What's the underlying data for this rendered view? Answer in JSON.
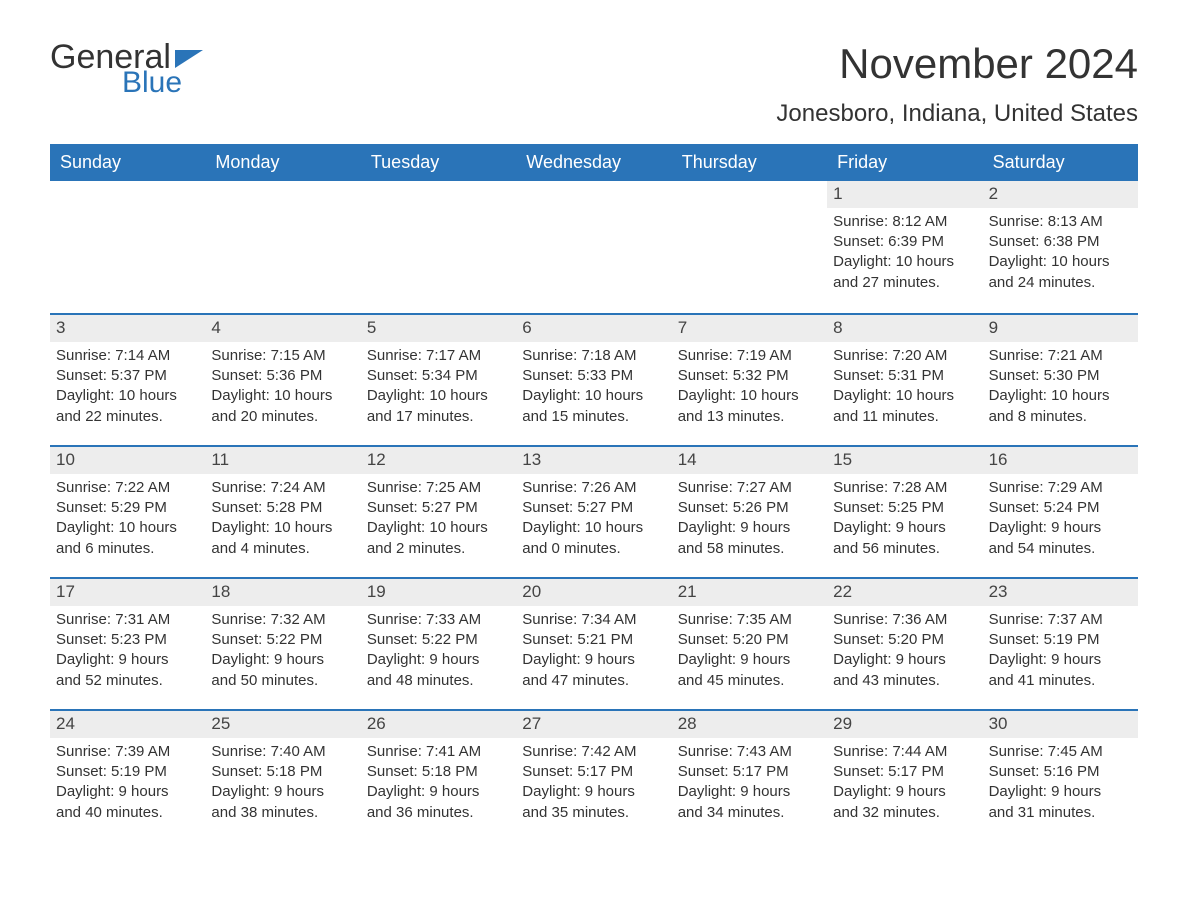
{
  "logo": {
    "text1": "General",
    "text2": "Blue",
    "flag_color": "#2a74b8"
  },
  "title": "November 2024",
  "location": "Jonesboro, Indiana, United States",
  "colors": {
    "header_bg": "#2a74b8",
    "header_text": "#ffffff",
    "daynum_bg": "#ededed",
    "row_border": "#2a74b8",
    "body_text": "#333333",
    "page_bg": "#ffffff"
  },
  "weekdays": [
    "Sunday",
    "Monday",
    "Tuesday",
    "Wednesday",
    "Thursday",
    "Friday",
    "Saturday"
  ],
  "weeks": [
    [
      null,
      null,
      null,
      null,
      null,
      {
        "n": "1",
        "sunrise": "8:12 AM",
        "sunset": "6:39 PM",
        "dl1": "10 hours",
        "dl2": "and 27 minutes."
      },
      {
        "n": "2",
        "sunrise": "8:13 AM",
        "sunset": "6:38 PM",
        "dl1": "10 hours",
        "dl2": "and 24 minutes."
      }
    ],
    [
      {
        "n": "3",
        "sunrise": "7:14 AM",
        "sunset": "5:37 PM",
        "dl1": "10 hours",
        "dl2": "and 22 minutes."
      },
      {
        "n": "4",
        "sunrise": "7:15 AM",
        "sunset": "5:36 PM",
        "dl1": "10 hours",
        "dl2": "and 20 minutes."
      },
      {
        "n": "5",
        "sunrise": "7:17 AM",
        "sunset": "5:34 PM",
        "dl1": "10 hours",
        "dl2": "and 17 minutes."
      },
      {
        "n": "6",
        "sunrise": "7:18 AM",
        "sunset": "5:33 PM",
        "dl1": "10 hours",
        "dl2": "and 15 minutes."
      },
      {
        "n": "7",
        "sunrise": "7:19 AM",
        "sunset": "5:32 PM",
        "dl1": "10 hours",
        "dl2": "and 13 minutes."
      },
      {
        "n": "8",
        "sunrise": "7:20 AM",
        "sunset": "5:31 PM",
        "dl1": "10 hours",
        "dl2": "and 11 minutes."
      },
      {
        "n": "9",
        "sunrise": "7:21 AM",
        "sunset": "5:30 PM",
        "dl1": "10 hours",
        "dl2": "and 8 minutes."
      }
    ],
    [
      {
        "n": "10",
        "sunrise": "7:22 AM",
        "sunset": "5:29 PM",
        "dl1": "10 hours",
        "dl2": "and 6 minutes."
      },
      {
        "n": "11",
        "sunrise": "7:24 AM",
        "sunset": "5:28 PM",
        "dl1": "10 hours",
        "dl2": "and 4 minutes."
      },
      {
        "n": "12",
        "sunrise": "7:25 AM",
        "sunset": "5:27 PM",
        "dl1": "10 hours",
        "dl2": "and 2 minutes."
      },
      {
        "n": "13",
        "sunrise": "7:26 AM",
        "sunset": "5:27 PM",
        "dl1": "10 hours",
        "dl2": "and 0 minutes."
      },
      {
        "n": "14",
        "sunrise": "7:27 AM",
        "sunset": "5:26 PM",
        "dl1": "9 hours",
        "dl2": "and 58 minutes."
      },
      {
        "n": "15",
        "sunrise": "7:28 AM",
        "sunset": "5:25 PM",
        "dl1": "9 hours",
        "dl2": "and 56 minutes."
      },
      {
        "n": "16",
        "sunrise": "7:29 AM",
        "sunset": "5:24 PM",
        "dl1": "9 hours",
        "dl2": "and 54 minutes."
      }
    ],
    [
      {
        "n": "17",
        "sunrise": "7:31 AM",
        "sunset": "5:23 PM",
        "dl1": "9 hours",
        "dl2": "and 52 minutes."
      },
      {
        "n": "18",
        "sunrise": "7:32 AM",
        "sunset": "5:22 PM",
        "dl1": "9 hours",
        "dl2": "and 50 minutes."
      },
      {
        "n": "19",
        "sunrise": "7:33 AM",
        "sunset": "5:22 PM",
        "dl1": "9 hours",
        "dl2": "and 48 minutes."
      },
      {
        "n": "20",
        "sunrise": "7:34 AM",
        "sunset": "5:21 PM",
        "dl1": "9 hours",
        "dl2": "and 47 minutes."
      },
      {
        "n": "21",
        "sunrise": "7:35 AM",
        "sunset": "5:20 PM",
        "dl1": "9 hours",
        "dl2": "and 45 minutes."
      },
      {
        "n": "22",
        "sunrise": "7:36 AM",
        "sunset": "5:20 PM",
        "dl1": "9 hours",
        "dl2": "and 43 minutes."
      },
      {
        "n": "23",
        "sunrise": "7:37 AM",
        "sunset": "5:19 PM",
        "dl1": "9 hours",
        "dl2": "and 41 minutes."
      }
    ],
    [
      {
        "n": "24",
        "sunrise": "7:39 AM",
        "sunset": "5:19 PM",
        "dl1": "9 hours",
        "dl2": "and 40 minutes."
      },
      {
        "n": "25",
        "sunrise": "7:40 AM",
        "sunset": "5:18 PM",
        "dl1": "9 hours",
        "dl2": "and 38 minutes."
      },
      {
        "n": "26",
        "sunrise": "7:41 AM",
        "sunset": "5:18 PM",
        "dl1": "9 hours",
        "dl2": "and 36 minutes."
      },
      {
        "n": "27",
        "sunrise": "7:42 AM",
        "sunset": "5:17 PM",
        "dl1": "9 hours",
        "dl2": "and 35 minutes."
      },
      {
        "n": "28",
        "sunrise": "7:43 AM",
        "sunset": "5:17 PM",
        "dl1": "9 hours",
        "dl2": "and 34 minutes."
      },
      {
        "n": "29",
        "sunrise": "7:44 AM",
        "sunset": "5:17 PM",
        "dl1": "9 hours",
        "dl2": "and 32 minutes."
      },
      {
        "n": "30",
        "sunrise": "7:45 AM",
        "sunset": "5:16 PM",
        "dl1": "9 hours",
        "dl2": "and 31 minutes."
      }
    ]
  ],
  "labels": {
    "sunrise": "Sunrise: ",
    "sunset": "Sunset: ",
    "daylight": "Daylight: "
  }
}
